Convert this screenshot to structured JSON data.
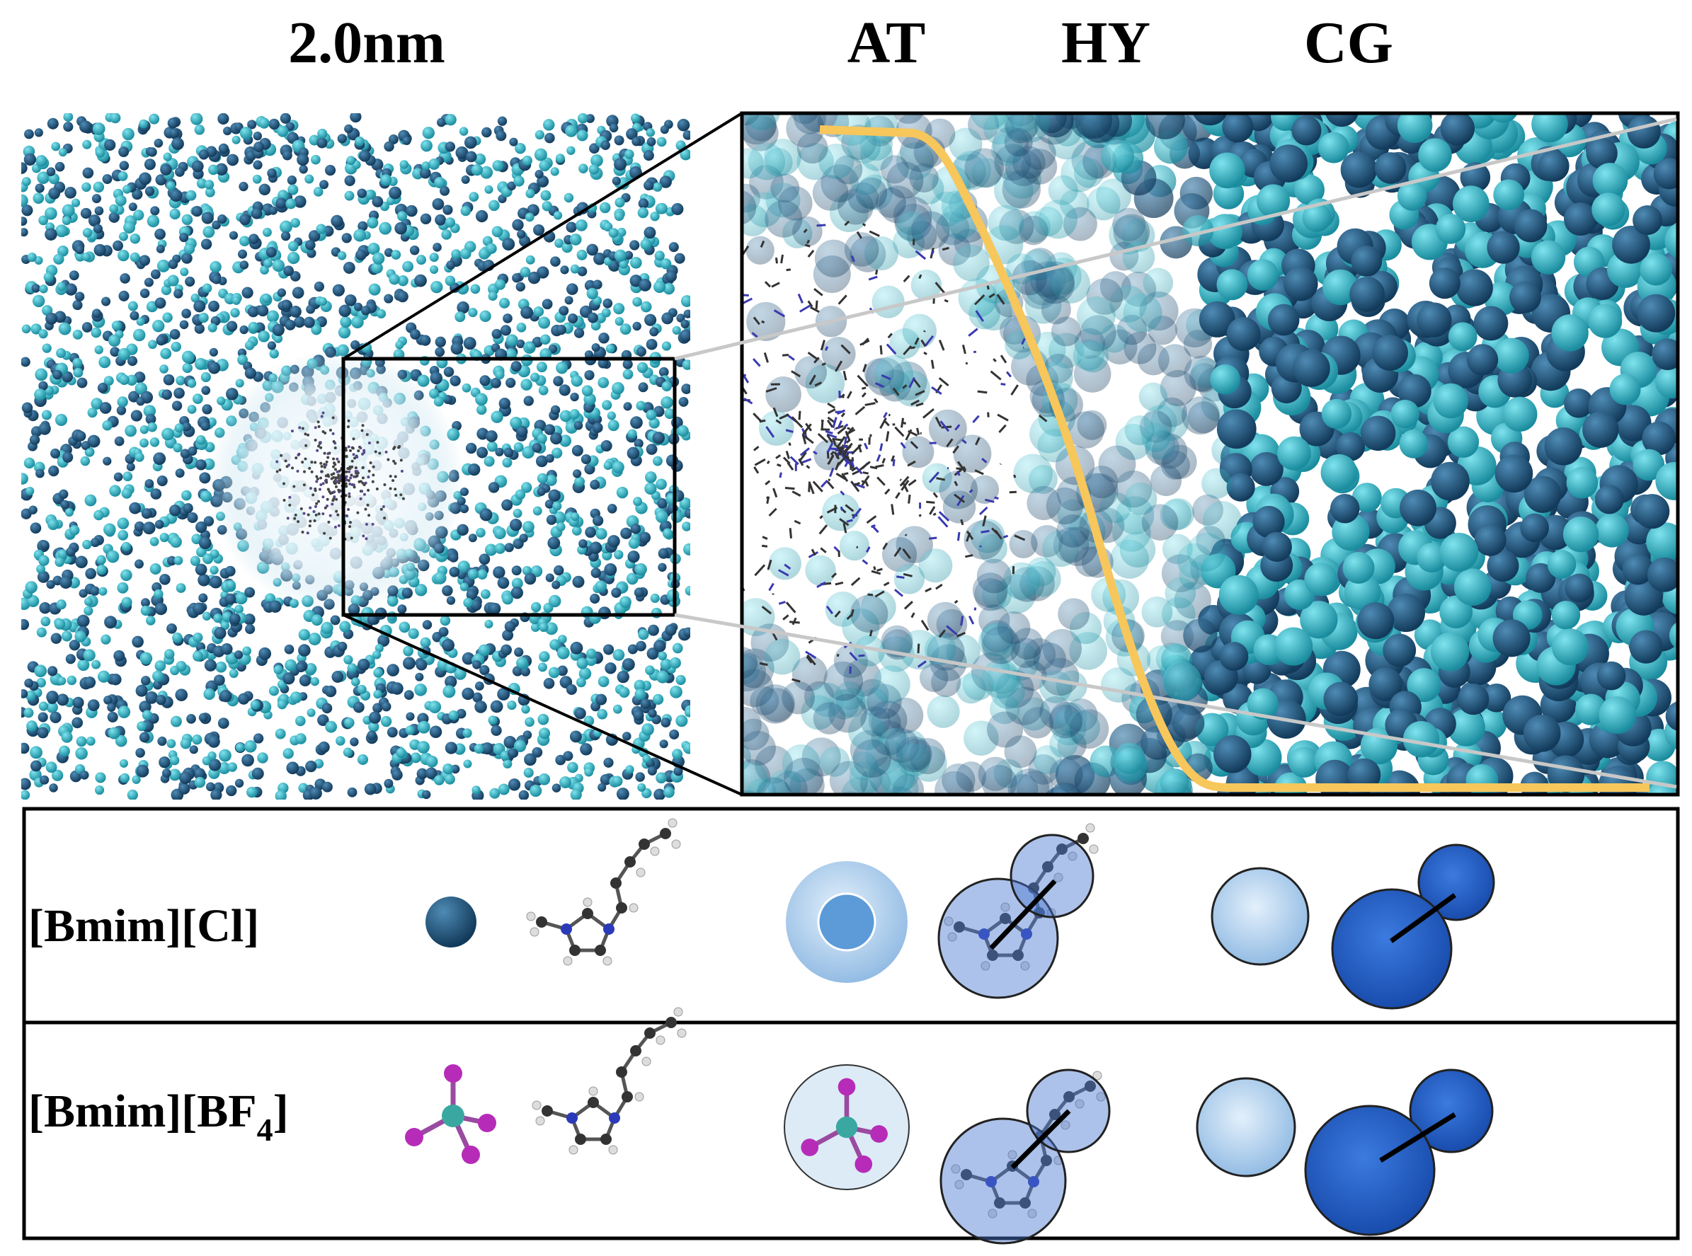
{
  "header": {
    "panel_label": "2.0nm",
    "regions": [
      "AT",
      "HY",
      "CG"
    ]
  },
  "table": {
    "rows": [
      {
        "label_parts": [
          "[Bmim][Cl]"
        ]
      },
      {
        "label_parts": [
          "[Bmim][BF",
          "4",
          "]"
        ]
      }
    ]
  }
}
